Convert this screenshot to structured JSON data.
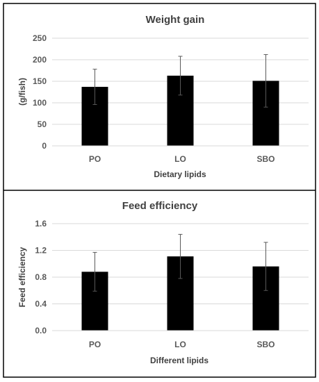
{
  "colors": {
    "bar": "#000000",
    "grid": "#d9d9d9",
    "axis_text": "#595959",
    "frame": "#000000",
    "error_bar": "#595959"
  },
  "chart_data": [
    {
      "type": "bar",
      "title": "Weight gain",
      "xlabel": "Dietary lipids",
      "ylabel": "(g/fish)",
      "categories": [
        "PO",
        "LO",
        "SBO"
      ],
      "values": [
        137,
        163,
        151
      ],
      "errors": [
        41,
        45,
        61
      ],
      "ylim": [
        0,
        250
      ],
      "yticks": [
        0,
        50,
        100,
        150,
        200,
        250
      ],
      "ytick_labels": [
        "0",
        "50",
        "100",
        "150",
        "200",
        "250"
      ],
      "grid": true
    },
    {
      "type": "bar",
      "title": "Feed efficiency",
      "xlabel": "Different lipids",
      "ylabel": "Feed efficiency",
      "categories": [
        "PO",
        "LO",
        "SBO"
      ],
      "values": [
        0.88,
        1.11,
        0.96
      ],
      "errors": [
        0.29,
        0.33,
        0.36
      ],
      "ylim": [
        0,
        1.6
      ],
      "yticks": [
        0,
        0.4,
        0.8,
        1.2,
        1.6
      ],
      "ytick_labels": [
        "0.0",
        "0.4",
        "0.8",
        "1.2",
        "1.6"
      ],
      "grid": true
    }
  ]
}
